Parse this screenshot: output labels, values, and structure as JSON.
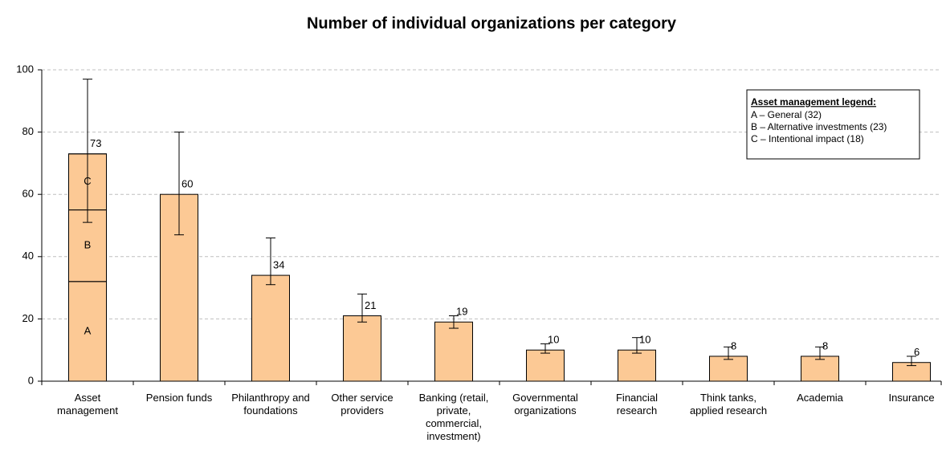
{
  "chart_data": {
    "type": "bar",
    "title": "Number of individual organizations per category",
    "categories": [
      "Asset management",
      "Pension funds",
      "Philanthropy and foundations",
      "Other service providers",
      "Banking (retail, private, commercial, investment)",
      "Governmental organizations",
      "Financial research",
      "Think tanks, applied research",
      "Academia",
      "Insurance"
    ],
    "values": [
      73,
      60,
      34,
      21,
      19,
      10,
      10,
      8,
      8,
      6
    ],
    "errors_plus": [
      24,
      20,
      12,
      7,
      2,
      2,
      4,
      3,
      3,
      2
    ],
    "errors_minus": [
      22,
      13,
      3,
      2,
      2,
      1,
      1,
      1,
      1,
      1
    ],
    "color": "#fcc995",
    "ylim": [
      0,
      100
    ],
    "yticks": [
      0,
      20,
      40,
      60,
      80,
      100
    ],
    "grid": true,
    "segments": {
      "category": 0,
      "labels": [
        "A",
        "B",
        "C"
      ],
      "values": [
        32,
        23,
        18
      ]
    },
    "legend": {
      "title": "Asset management legend:",
      "items": [
        "A – General (32)",
        "B – Alternative investments (23)",
        "C – Intentional impact (18)"
      ],
      "position": "upper right"
    }
  }
}
